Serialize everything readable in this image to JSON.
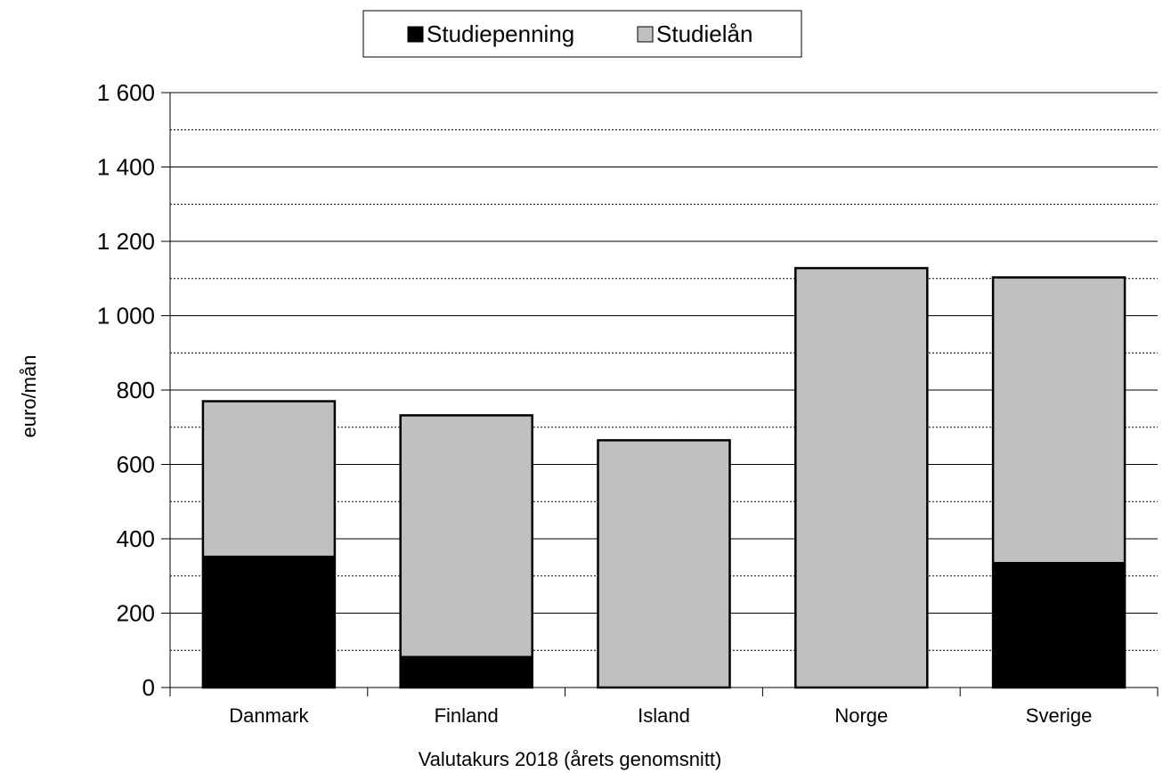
{
  "chart_data": {
    "type": "bar",
    "stacked": true,
    "categories": [
      "Danmark",
      "Finland",
      "Island",
      "Norge",
      "Sverige"
    ],
    "series": [
      {
        "name": "Studiepenning",
        "color": "#000000",
        "values": [
          355,
          85,
          0,
          0,
          338
        ]
      },
      {
        "name": "Studielån",
        "color": "#c0c0c0",
        "values": [
          415,
          647,
          665,
          1128,
          765
        ]
      }
    ],
    "xlabel": "Valutakurs 2018 (årets genomsnitt)",
    "ylabel": "euro/mån",
    "ylim": [
      0,
      1600
    ],
    "yticks": [
      0,
      200,
      400,
      600,
      800,
      1000,
      1200,
      1400,
      1600
    ],
    "ytick_labels": [
      "0",
      "200",
      "400",
      "600",
      "800",
      "1 000",
      "1 200",
      "1 400",
      "1 600"
    ],
    "grid": true,
    "legend_position": "top-center"
  }
}
